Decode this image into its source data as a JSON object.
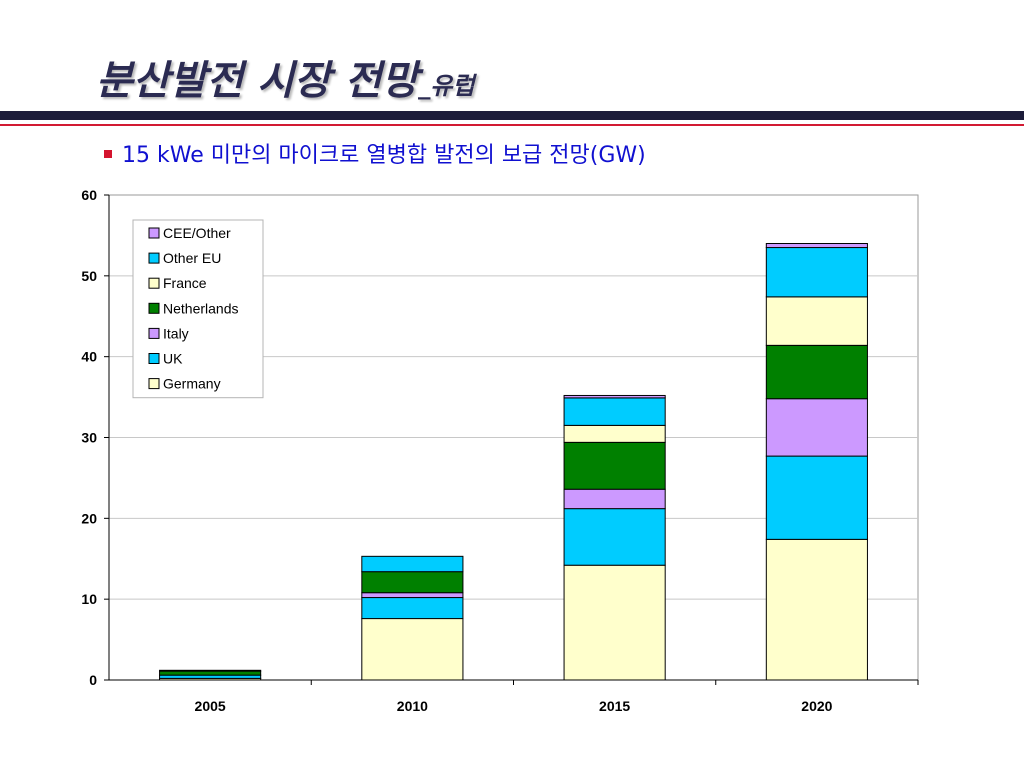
{
  "slide": {
    "title": "분산발전 시장 전망",
    "title_suffix": "_유럽",
    "bullet": "15 kWe 미만의 마이크로 열병합 발전의 보급 전망(GW)"
  },
  "chart_data": {
    "type": "bar",
    "stacked": true,
    "title": "",
    "xlabel": "",
    "ylabel": "",
    "categories": [
      "2005",
      "2010",
      "2015",
      "2020"
    ],
    "ylim": [
      0,
      60
    ],
    "yticks": [
      0,
      10,
      20,
      30,
      40,
      50,
      60
    ],
    "grid": true,
    "legend_position": "top-left",
    "series": [
      {
        "name": "Germany",
        "color": "#FFFFCC",
        "values": [
          0.2,
          7.6,
          14.2,
          17.4
        ]
      },
      {
        "name": "UK",
        "color": "#00CCFF",
        "values": [
          0.4,
          2.6,
          7.0,
          10.3
        ]
      },
      {
        "name": "Italy",
        "color": "#CC99FF",
        "values": [
          0.0,
          0.6,
          2.4,
          7.1
        ]
      },
      {
        "name": "Netherlands",
        "color": "#008000",
        "values": [
          0.5,
          2.6,
          5.8,
          6.6
        ]
      },
      {
        "name": "France",
        "color": "#FFFFCC",
        "values": [
          0.0,
          0.0,
          2.1,
          6.0
        ]
      },
      {
        "name": "Other EU",
        "color": "#00CCFF",
        "values": [
          0.1,
          1.9,
          3.4,
          6.1
        ]
      },
      {
        "name": "CEE/Other",
        "color": "#CC99FF",
        "values": [
          0.0,
          0.0,
          0.3,
          0.5
        ]
      }
    ]
  }
}
